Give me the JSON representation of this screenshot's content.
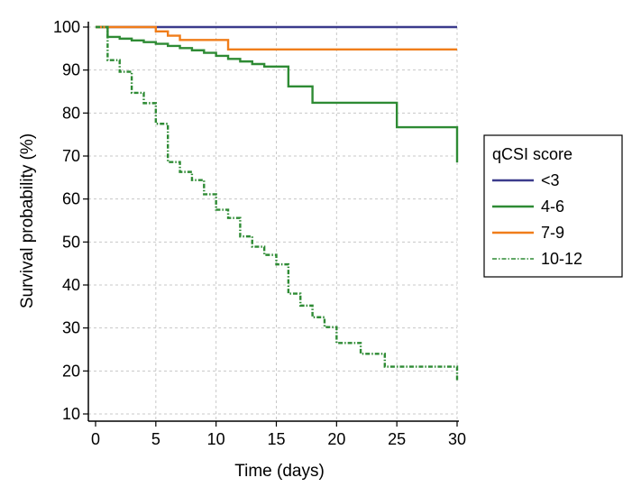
{
  "chart_data": {
    "type": "line",
    "title": "",
    "xlabel": "Time (days)",
    "ylabel": "Survival probability (%)",
    "xlim": [
      0,
      30
    ],
    "ylim": [
      10,
      100
    ],
    "xticks": [
      0,
      5,
      10,
      15,
      20,
      25,
      30
    ],
    "yticks": [
      10,
      20,
      30,
      40,
      50,
      60,
      70,
      80,
      90,
      100
    ],
    "grid": true,
    "legend": {
      "title": "qCSI score",
      "position": "right"
    },
    "series": [
      {
        "name": "<3",
        "color": "#3b3b8c",
        "style": "solid",
        "x": [
          0,
          30
        ],
        "y": [
          100,
          100
        ]
      },
      {
        "name": "4-6",
        "color": "#2e8b34",
        "style": "solid",
        "x": [
          0,
          1,
          2,
          3,
          4,
          5,
          6,
          7,
          8,
          9,
          10,
          11,
          12,
          13,
          14,
          16,
          18,
          25,
          30,
          30
        ],
        "y": [
          100,
          97.7,
          97.3,
          96.9,
          96.5,
          96.1,
          95.6,
          95.1,
          94.6,
          94.0,
          93.3,
          92.6,
          92.0,
          91.4,
          90.8,
          86.2,
          82.4,
          76.7,
          68.5,
          68.5
        ]
      },
      {
        "name": "7-9",
        "color": "#f07d1a",
        "style": "solid",
        "x": [
          0,
          5,
          6,
          7,
          11,
          30
        ],
        "y": [
          100,
          99.0,
          98.0,
          97.0,
          94.8,
          94.8
        ]
      },
      {
        "name": "10-12",
        "color": "#2e8b34",
        "style": "dashdot",
        "x": [
          0,
          1,
          2,
          3,
          4,
          5,
          6,
          7,
          8,
          9,
          10,
          11,
          12,
          13,
          14,
          15,
          16,
          17,
          18,
          19,
          20,
          22,
          24,
          30,
          30
        ],
        "y": [
          100,
          92.3,
          89.6,
          84.7,
          82.3,
          77.5,
          68.6,
          66.3,
          64.4,
          61.1,
          57.5,
          55.6,
          51.3,
          48.9,
          47.0,
          44.8,
          38.0,
          35.2,
          32.5,
          30.2,
          26.5,
          24.0,
          21.0,
          17.5,
          17.5
        ]
      }
    ]
  }
}
